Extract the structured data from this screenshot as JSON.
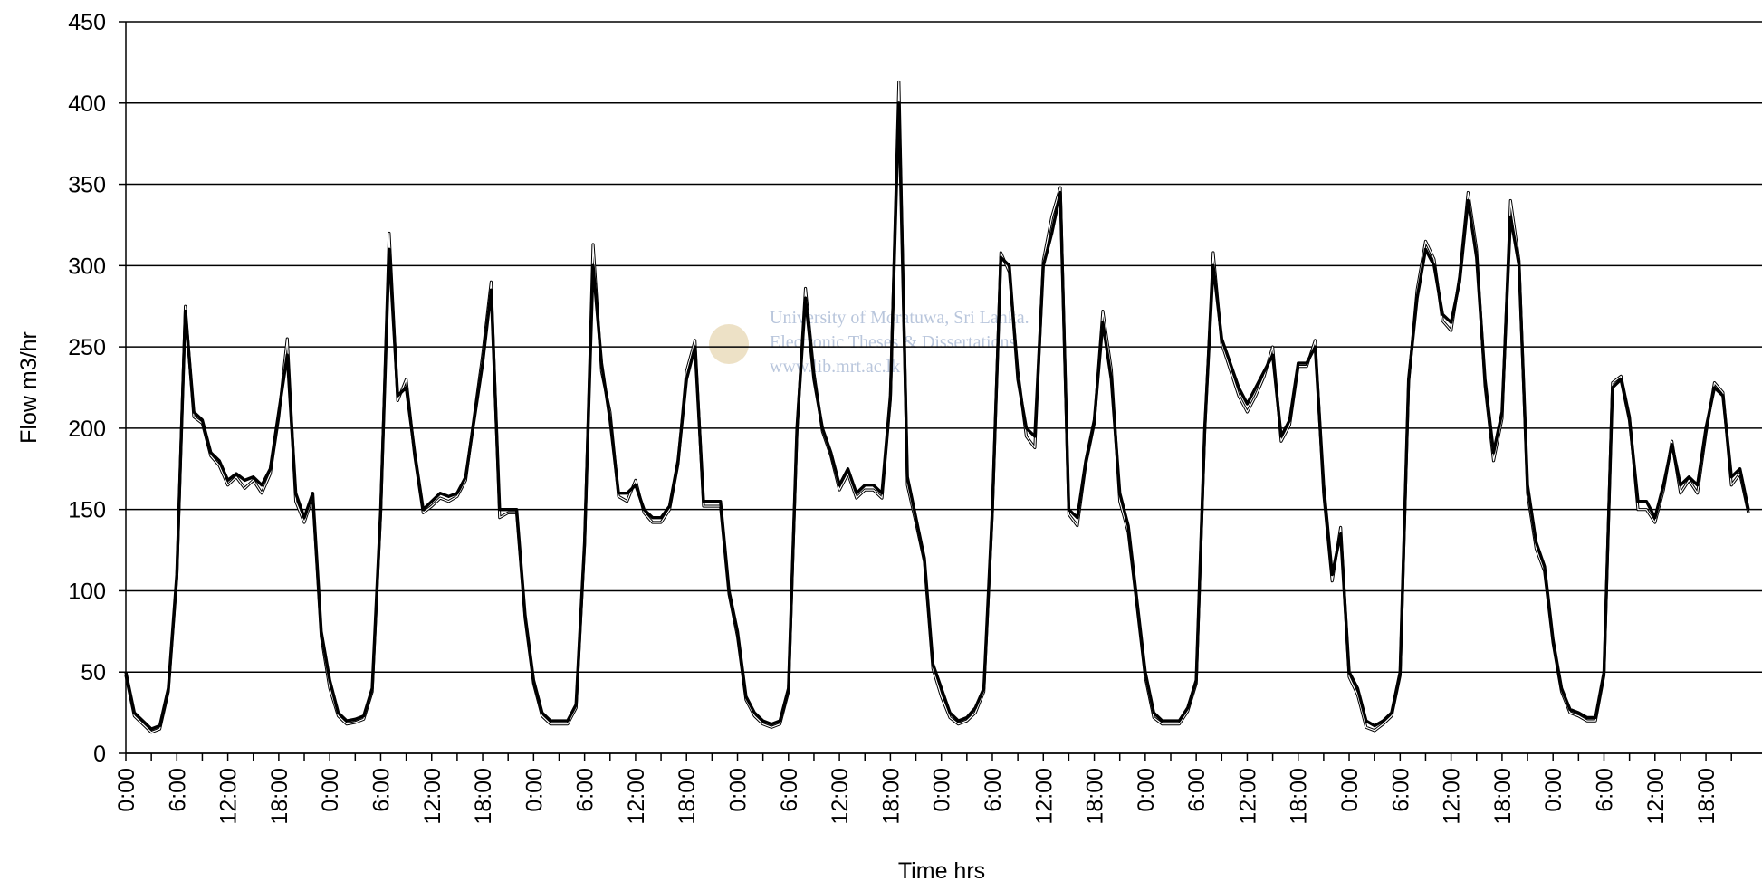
{
  "chart_data": {
    "type": "line",
    "x_label": "Time hrs",
    "y_label": "Flow m3/hr",
    "watermark": [
      "University of Moratuwa, Sri Lanka.",
      "Electronic Theses & Dissertations",
      "www.lib.mrt.ac.lk"
    ],
    "ylim": [
      0,
      450
    ],
    "yticks": [
      0,
      50,
      100,
      150,
      200,
      250,
      300,
      350,
      400,
      450
    ],
    "grid": true,
    "categories": [
      "0:00",
      null,
      null,
      null,
      null,
      null,
      "6:00",
      null,
      null,
      null,
      null,
      null,
      "12:00",
      null,
      null,
      null,
      null,
      null,
      "18:00",
      null,
      null,
      null,
      null,
      null,
      "0:00",
      null,
      null,
      null,
      null,
      null,
      "6:00",
      null,
      null,
      null,
      null,
      null,
      "12:00",
      null,
      null,
      null,
      null,
      null,
      "18:00",
      null,
      null,
      null,
      null,
      null,
      "0:00",
      null,
      null,
      null,
      null,
      null,
      "6:00",
      null,
      null,
      null,
      null,
      null,
      "12:00",
      null,
      null,
      null,
      null,
      null,
      "18:00",
      null,
      null,
      null,
      null,
      null,
      "0:00",
      null,
      null,
      null,
      null,
      null,
      "6:00",
      null,
      null,
      null,
      null,
      null,
      "12:00",
      null,
      null,
      null,
      null,
      null,
      "18:00",
      null,
      null,
      null,
      null,
      null,
      "0:00",
      null,
      null,
      null,
      null,
      null,
      "6:00",
      null,
      null,
      null,
      null,
      null,
      "12:00",
      null,
      null,
      null,
      null,
      null,
      "18:00",
      null,
      null,
      null,
      null,
      null,
      "0:00",
      null,
      null,
      null,
      null,
      null,
      "6:00",
      null,
      null,
      null,
      null,
      null,
      "12:00",
      null,
      null,
      null,
      null,
      null,
      "18:00",
      null,
      null,
      null,
      null,
      null,
      "0:00",
      null,
      null,
      null,
      null,
      null,
      "6:00",
      null,
      null,
      null,
      null,
      null,
      "12:00",
      null,
      null,
      null,
      null,
      null,
      "18:00",
      null,
      null,
      null,
      null,
      null,
      "0:00",
      null,
      null,
      null,
      null,
      null,
      "6:00",
      null,
      null,
      null,
      null,
      null,
      "12:00",
      null,
      null,
      null,
      null,
      null,
      "18:00",
      null,
      null,
      null,
      null,
      null
    ],
    "series": [
      {
        "color": "#ffffff",
        "values": [
          48,
          23,
          18,
          13,
          15,
          38,
          108,
          275,
          207,
          203,
          183,
          177,
          165,
          170,
          163,
          168,
          160,
          172,
          207,
          255,
          155,
          142,
          158,
          72,
          40,
          23,
          18,
          19,
          21,
          38,
          148,
          320,
          217,
          230,
          183,
          148,
          152,
          157,
          155,
          158,
          168,
          207,
          245,
          290,
          145,
          148,
          148,
          83,
          43,
          23,
          18,
          18,
          18,
          28,
          128,
          313,
          235,
          210,
          158,
          155,
          168,
          148,
          142,
          142,
          150,
          178,
          235,
          254,
          152,
          152,
          152,
          98,
          72,
          33,
          23,
          18,
          16,
          18,
          38,
          198,
          286,
          234,
          198,
          183,
          162,
          172,
          157,
          162,
          162,
          157,
          218,
          413,
          165,
          142,
          118,
          52,
          35,
          22,
          18,
          20,
          25,
          38,
          148,
          308,
          296,
          235,
          195,
          188,
          303,
          330,
          348,
          147,
          140,
          178,
          203,
          272,
          236,
          155,
          136,
          92,
          47,
          22,
          18,
          18,
          18,
          26,
          43,
          198,
          308,
          252,
          236,
          220,
          210,
          220,
          232,
          250,
          192,
          202,
          238,
          238,
          254,
          160,
          106,
          139,
          47,
          36,
          16,
          14,
          18,
          23,
          48,
          228,
          285,
          315,
          304,
          266,
          260,
          293,
          345,
          310,
          226,
          180,
          206,
          340,
          303,
          160,
          126,
          112,
          68,
          38,
          25,
          23,
          20,
          20,
          48,
          228,
          232,
          207,
          150,
          150,
          142,
          162,
          192,
          160,
          168,
          160,
          197,
          228,
          222,
          165,
          172,
          148
        ]
      },
      {
        "color": "#000000",
        "values": [
          50,
          25,
          20,
          15,
          17,
          40,
          110,
          272,
          210,
          205,
          185,
          180,
          168,
          172,
          168,
          170,
          165,
          175,
          210,
          245,
          160,
          145,
          160,
          75,
          45,
          25,
          20,
          21,
          23,
          40,
          150,
          310,
          220,
          225,
          185,
          150,
          155,
          160,
          158,
          160,
          170,
          205,
          240,
          285,
          150,
          150,
          150,
          85,
          45,
          25,
          20,
          20,
          20,
          30,
          130,
          300,
          240,
          205,
          160,
          160,
          165,
          150,
          145,
          145,
          152,
          180,
          230,
          250,
          155,
          155,
          155,
          100,
          75,
          35,
          25,
          20,
          18,
          20,
          40,
          200,
          280,
          230,
          200,
          185,
          165,
          175,
          160,
          165,
          165,
          160,
          220,
          400,
          170,
          145,
          120,
          55,
          40,
          25,
          20,
          22,
          28,
          40,
          150,
          305,
          300,
          230,
          200,
          195,
          300,
          320,
          345,
          150,
          145,
          180,
          205,
          265,
          230,
          160,
          140,
          95,
          50,
          25,
          20,
          20,
          20,
          28,
          45,
          200,
          300,
          255,
          240,
          225,
          215,
          225,
          235,
          245,
          195,
          205,
          240,
          240,
          250,
          165,
          110,
          135,
          50,
          40,
          20,
          17,
          20,
          25,
          50,
          230,
          280,
          310,
          300,
          270,
          265,
          290,
          340,
          305,
          230,
          185,
          210,
          330,
          300,
          165,
          130,
          115,
          70,
          40,
          27,
          25,
          22,
          22,
          50,
          225,
          230,
          205,
          155,
          155,
          145,
          165,
          190,
          165,
          170,
          165,
          200,
          225,
          220,
          170,
          175,
          150
        ]
      }
    ]
  }
}
